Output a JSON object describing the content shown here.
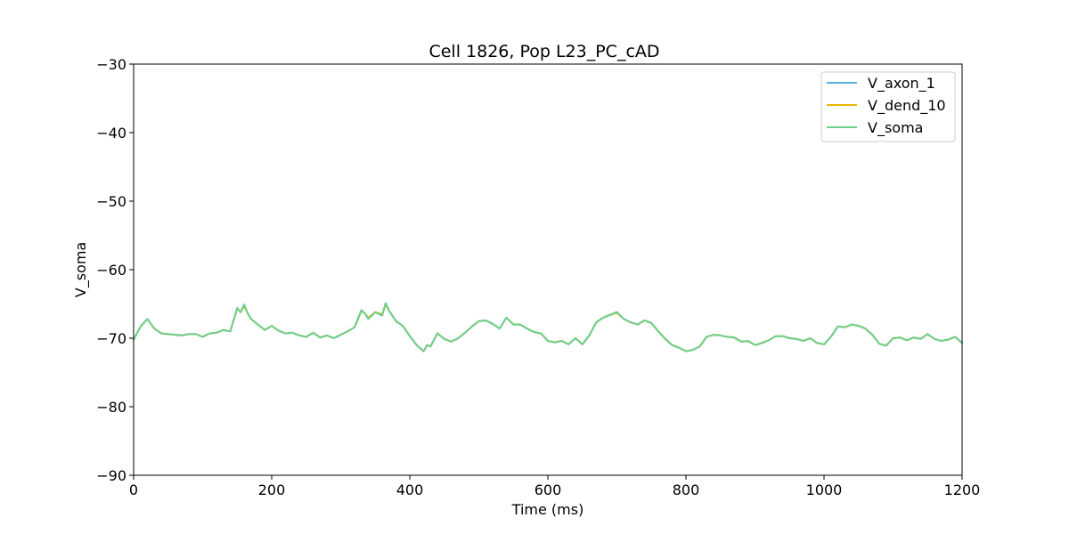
{
  "chart_data": {
    "type": "line",
    "title": "Cell 1826, Pop L23_PC_cAD",
    "xlabel": "Time (ms)",
    "ylabel": "V_soma",
    "xlim": [
      0,
      1200
    ],
    "ylim": [
      -90,
      -30
    ],
    "xticks": [
      0,
      200,
      400,
      600,
      800,
      1000,
      1200
    ],
    "yticks": [
      -90,
      -80,
      -70,
      -60,
      -50,
      -40,
      -30
    ],
    "xtick_labels": [
      "0",
      "200",
      "400",
      "600",
      "800",
      "1000",
      "1200"
    ],
    "ytick_labels": [
      "−90",
      "−80",
      "−70",
      "−60",
      "−50",
      "−40",
      "−30"
    ],
    "grid": false,
    "legend_position": "top-right",
    "x": [
      0,
      10,
      20,
      30,
      40,
      50,
      60,
      70,
      80,
      90,
      100,
      110,
      120,
      130,
      140,
      150,
      155,
      160,
      165,
      170,
      180,
      190,
      200,
      210,
      220,
      230,
      240,
      250,
      260,
      270,
      280,
      290,
      300,
      310,
      320,
      330,
      335,
      340,
      350,
      360,
      365,
      370,
      380,
      390,
      400,
      410,
      420,
      425,
      430,
      440,
      450,
      460,
      470,
      480,
      490,
      500,
      510,
      520,
      530,
      540,
      550,
      560,
      570,
      580,
      590,
      600,
      610,
      620,
      630,
      640,
      650,
      660,
      670,
      680,
      690,
      700,
      710,
      720,
      730,
      740,
      750,
      760,
      770,
      780,
      790,
      800,
      810,
      820,
      830,
      840,
      850,
      860,
      870,
      880,
      890,
      900,
      910,
      920,
      930,
      940,
      950,
      960,
      970,
      980,
      990,
      1000,
      1010,
      1020,
      1030,
      1040,
      1050,
      1060,
      1070,
      1080,
      1090,
      1100,
      1110,
      1120,
      1130,
      1140,
      1150,
      1160,
      1170,
      1180,
      1190,
      1200
    ],
    "series": [
      {
        "name": "V_axon_1",
        "color": "#5aaee0",
        "values": [
          -70.2,
          -68.3,
          -67.2,
          -68.6,
          -69.3,
          -69.4,
          -69.5,
          -69.6,
          -69.4,
          -69.4,
          -69.8,
          -69.3,
          -69.2,
          -68.8,
          -69.0,
          -65.6,
          -66.2,
          -65.1,
          -66.3,
          -67.2,
          -68.0,
          -68.8,
          -68.2,
          -68.9,
          -69.3,
          -69.2,
          -69.6,
          -69.8,
          -69.2,
          -69.9,
          -69.6,
          -70.0,
          -69.5,
          -69.0,
          -68.4,
          -65.9,
          -66.4,
          -67.2,
          -66.2,
          -66.7,
          -64.9,
          -66.0,
          -67.5,
          -68.2,
          -69.7,
          -71.0,
          -71.9,
          -71.0,
          -71.2,
          -69.3,
          -70.1,
          -70.5,
          -70.0,
          -69.2,
          -68.3,
          -67.5,
          -67.4,
          -67.9,
          -68.6,
          -67.0,
          -68.0,
          -68.0,
          -68.6,
          -69.1,
          -69.3,
          -70.4,
          -70.6,
          -70.4,
          -70.9,
          -70.0,
          -70.9,
          -69.6,
          -67.7,
          -67.0,
          -66.6,
          -66.2,
          -67.2,
          -67.7,
          -68.0,
          -67.4,
          -67.8,
          -69.0,
          -70.1,
          -71.0,
          -71.4,
          -71.9,
          -71.7,
          -71.2,
          -69.8,
          -69.5,
          -69.6,
          -69.8,
          -69.9,
          -70.5,
          -70.4,
          -71.0,
          -70.7,
          -70.3,
          -69.7,
          -69.7,
          -70.0,
          -70.1,
          -70.4,
          -70.0,
          -70.7,
          -70.9,
          -69.8,
          -68.3,
          -68.4,
          -68.0,
          -68.2,
          -68.6,
          -69.5,
          -70.8,
          -71.1,
          -70.0,
          -69.9,
          -70.3,
          -69.9,
          -70.1,
          -69.4,
          -70.1,
          -70.4,
          -70.2,
          -69.8,
          -70.7
        ]
      },
      {
        "name": "V_dend_10",
        "color": "#e6b800",
        "values": [
          -70.2,
          -68.3,
          -67.2,
          -68.6,
          -69.3,
          -69.4,
          -69.5,
          -69.6,
          -69.4,
          -69.4,
          -69.8,
          -69.3,
          -69.2,
          -68.8,
          -69.0,
          -65.7,
          -66.2,
          -65.3,
          -66.3,
          -67.2,
          -68.0,
          -68.8,
          -68.2,
          -68.9,
          -69.3,
          -69.2,
          -69.6,
          -69.8,
          -69.2,
          -69.9,
          -69.6,
          -70.0,
          -69.5,
          -69.0,
          -68.4,
          -66.0,
          -66.4,
          -67.0,
          -66.2,
          -66.5,
          -65.1,
          -66.0,
          -67.5,
          -68.2,
          -69.7,
          -71.0,
          -71.9,
          -71.0,
          -71.2,
          -69.3,
          -70.1,
          -70.5,
          -70.0,
          -69.2,
          -68.3,
          -67.5,
          -67.4,
          -67.9,
          -68.6,
          -67.0,
          -68.0,
          -68.0,
          -68.6,
          -69.1,
          -69.3,
          -70.4,
          -70.6,
          -70.4,
          -70.9,
          -70.0,
          -70.9,
          -69.6,
          -67.7,
          -67.0,
          -66.6,
          -66.3,
          -67.2,
          -67.7,
          -68.0,
          -67.4,
          -67.8,
          -69.0,
          -70.1,
          -71.0,
          -71.4,
          -71.9,
          -71.7,
          -71.2,
          -69.8,
          -69.5,
          -69.6,
          -69.8,
          -69.9,
          -70.5,
          -70.4,
          -71.0,
          -70.7,
          -70.3,
          -69.7,
          -69.7,
          -70.0,
          -70.1,
          -70.4,
          -70.0,
          -70.7,
          -70.9,
          -69.8,
          -68.3,
          -68.4,
          -68.0,
          -68.2,
          -68.6,
          -69.5,
          -70.8,
          -71.1,
          -70.0,
          -69.9,
          -70.3,
          -69.9,
          -70.1,
          -69.4,
          -70.1,
          -70.4,
          -70.2,
          -69.8,
          -70.7
        ]
      },
      {
        "name": "V_soma",
        "color": "#6fcf8c",
        "values": [
          -70.2,
          -68.3,
          -67.2,
          -68.6,
          -69.3,
          -69.4,
          -69.5,
          -69.6,
          -69.4,
          -69.4,
          -69.8,
          -69.3,
          -69.2,
          -68.8,
          -69.0,
          -65.6,
          -66.2,
          -65.1,
          -66.3,
          -67.2,
          -68.0,
          -68.8,
          -68.2,
          -68.9,
          -69.3,
          -69.2,
          -69.6,
          -69.8,
          -69.2,
          -69.9,
          -69.6,
          -70.0,
          -69.5,
          -69.0,
          -68.4,
          -65.9,
          -66.4,
          -67.2,
          -66.2,
          -66.7,
          -64.9,
          -66.0,
          -67.5,
          -68.2,
          -69.7,
          -71.0,
          -71.9,
          -71.0,
          -71.2,
          -69.3,
          -70.1,
          -70.5,
          -70.0,
          -69.2,
          -68.3,
          -67.5,
          -67.4,
          -67.9,
          -68.6,
          -67.0,
          -68.0,
          -68.0,
          -68.6,
          -69.1,
          -69.3,
          -70.4,
          -70.6,
          -70.4,
          -70.9,
          -70.0,
          -70.9,
          -69.6,
          -67.7,
          -67.0,
          -66.6,
          -66.2,
          -67.2,
          -67.7,
          -68.0,
          -67.4,
          -67.8,
          -69.0,
          -70.1,
          -71.0,
          -71.4,
          -71.9,
          -71.7,
          -71.2,
          -69.8,
          -69.5,
          -69.6,
          -69.8,
          -69.9,
          -70.5,
          -70.4,
          -71.0,
          -70.7,
          -70.3,
          -69.7,
          -69.7,
          -70.0,
          -70.1,
          -70.4,
          -70.0,
          -70.7,
          -70.9,
          -69.8,
          -68.3,
          -68.4,
          -68.0,
          -68.2,
          -68.6,
          -69.5,
          -70.8,
          -71.1,
          -70.0,
          -69.9,
          -70.3,
          -69.9,
          -70.1,
          -69.4,
          -70.1,
          -70.4,
          -70.2,
          -69.8,
          -70.7
        ]
      }
    ]
  }
}
